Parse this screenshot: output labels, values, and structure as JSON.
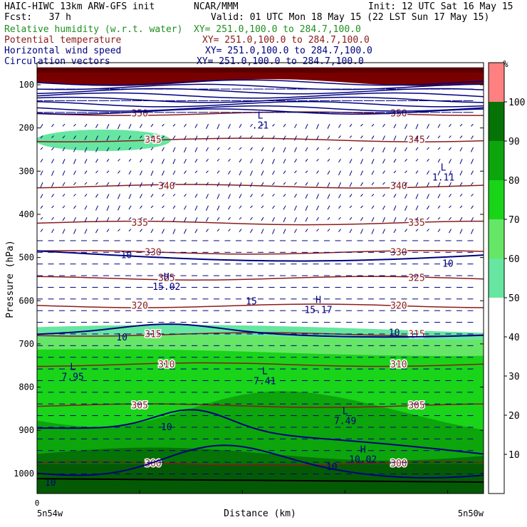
{
  "header": {
    "model": "HAIC-HIWC 13km ARW-GFS init",
    "org": "NCAR/MMM",
    "init": "Init: 12 UTC Sat 16 May 15",
    "fcst": "Fcst:   37 h",
    "valid": "Valid: 01 UTC Mon 18 May 15 (22 LST Sun 17 May 15)",
    "fields": [
      {
        "name": "Relative humidity (w.r.t. water)",
        "xy": "XY= 251.0,100.0 to 284.7,100.0",
        "color": "#1f8f1f"
      },
      {
        "name": "Potential temperature",
        "xy": "XY= 251.0,100.0 to 284.7,100.0",
        "color": "#8b1a1a"
      },
      {
        "name": "Horizontal wind speed",
        "xy": "XY= 251.0,100.0 to 284.7,100.0",
        "color": "#000080"
      },
      {
        "name": "Circulation vectors",
        "xy": "XY= 251.0,100.0 to 284.7,100.0",
        "color": "#000080"
      }
    ]
  },
  "chart_data": {
    "type": "heatmap",
    "xlabel": "Distance (km)",
    "ylabel": "Pressure (hPa)",
    "x_tick_labels": [
      "0"
    ],
    "x_end_labels": [
      "5n54w",
      "5n50w"
    ],
    "y_ticks": [
      100,
      200,
      300,
      400,
      500,
      600,
      700,
      800,
      900,
      1000
    ],
    "ylim": [
      1050,
      60
    ],
    "rh_colorbar": {
      "unit": "%",
      "levels": [
        10,
        20,
        30,
        40,
        50,
        60,
        70,
        80,
        90,
        100
      ],
      "colors": [
        "#ffffff",
        "#ffffff",
        "#ffffff",
        "#ffffff",
        "#ffffff",
        "#66e6a0",
        "#66e666",
        "#19d419",
        "#0ca50c",
        "#057305",
        "#ff8080"
      ]
    },
    "theta_contours": [
      {
        "label": "350",
        "p": 167
      },
      {
        "label": "345",
        "p": 228
      },
      {
        "label": "340",
        "p": 335
      },
      {
        "label": "335",
        "p": 420
      },
      {
        "label": "330",
        "p": 488
      },
      {
        "label": "325",
        "p": 548
      },
      {
        "label": "320",
        "p": 612
      },
      {
        "label": "315",
        "p": 678
      },
      {
        "label": "310",
        "p": 748
      },
      {
        "label": "305",
        "p": 843
      },
      {
        "label": "300",
        "p": 977
      }
    ],
    "wind_labels": [
      {
        "text": "L",
        "sub": ".21",
        "x": 0.5,
        "p": 185
      },
      {
        "text": "L",
        "sub": "1.11",
        "x": 0.91,
        "p": 305
      },
      {
        "text": "H",
        "sub": "15.02",
        "x": 0.29,
        "p": 558
      },
      {
        "text": "H",
        "sub": "15.17",
        "x": 0.63,
        "p": 612
      },
      {
        "text": "L",
        "sub": "7.95",
        "x": 0.08,
        "p": 767
      },
      {
        "text": "L",
        "sub": "7.41",
        "x": 0.51,
        "p": 777
      },
      {
        "text": "L",
        "sub": "7.49",
        "x": 0.69,
        "p": 869
      },
      {
        "text": "H",
        "sub": "10.02",
        "x": 0.73,
        "p": 958
      }
    ],
    "wind_contour_labels": [
      {
        "text": "10",
        "x": 0.2,
        "p": 495
      },
      {
        "text": "10",
        "x": 0.92,
        "p": 515
      },
      {
        "text": "15",
        "x": 0.48,
        "p": 602
      },
      {
        "text": "10",
        "x": 0.19,
        "p": 685
      },
      {
        "text": "10",
        "x": 0.8,
        "p": 675
      },
      {
        "text": "10",
        "x": 0.29,
        "p": 893
      },
      {
        "text": "10",
        "x": 0.66,
        "p": 985
      },
      {
        "text": "10",
        "x": 0.03,
        "p": 1022
      }
    ]
  }
}
